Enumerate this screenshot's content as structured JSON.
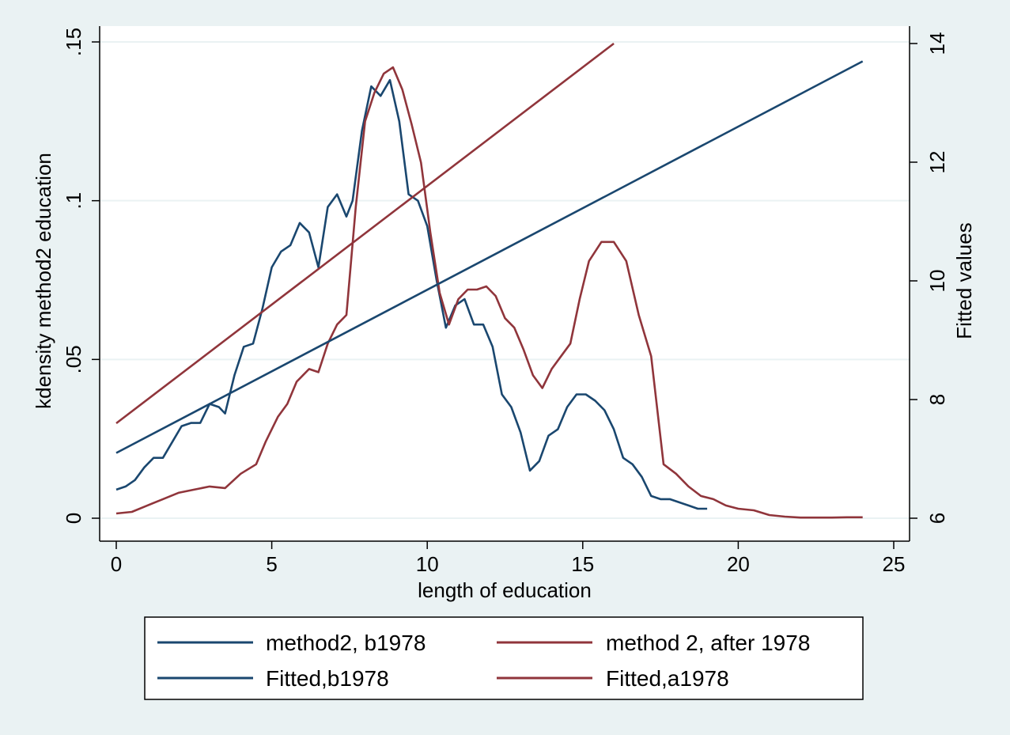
{
  "chart_data": {
    "type": "line",
    "xlabel": "length of education",
    "ylabel_left": "kdensity method2 education",
    "ylabel_right": "Fitted values",
    "xlim": [
      0,
      25
    ],
    "ylim_left": [
      0,
      0.15
    ],
    "ylim_right": [
      6,
      14
    ],
    "x_ticks": [
      0,
      5,
      10,
      15,
      20,
      25
    ],
    "x_tick_labels": [
      "0",
      "5",
      "10",
      "15",
      "20",
      "25"
    ],
    "y_left_ticks": [
      0,
      0.05,
      0.1,
      0.15
    ],
    "y_left_tick_labels": [
      "0",
      ".05",
      ".1",
      ".15"
    ],
    "y_right_ticks": [
      6,
      8,
      10,
      12,
      14
    ],
    "y_right_tick_labels": [
      "6",
      "8",
      "10",
      "12",
      "14"
    ],
    "grid": true,
    "legend_position": "bottom",
    "series": [
      {
        "name": "method2, b1978",
        "axis": "left",
        "color": "#1a476f",
        "x": [
          0,
          0.3,
          0.6,
          0.9,
          1.2,
          1.5,
          1.8,
          2.1,
          2.4,
          2.7,
          3.0,
          3.3,
          3.5,
          3.8,
          4.1,
          4.4,
          4.7,
          5.0,
          5.3,
          5.6,
          5.9,
          6.2,
          6.5,
          6.8,
          7.1,
          7.4,
          7.6,
          7.9,
          8.2,
          8.5,
          8.8,
          9.1,
          9.4,
          9.7,
          10.0,
          10.3,
          10.6,
          10.9,
          11.2,
          11.5,
          11.8,
          12.1,
          12.4,
          12.7,
          13.0,
          13.3,
          13.6,
          13.9,
          14.2,
          14.5,
          14.8,
          15.1,
          15.4,
          15.7,
          16.0,
          16.3,
          16.6,
          16.9,
          17.2,
          17.5,
          17.8,
          18.1,
          18.4,
          18.7,
          19.0
        ],
        "y": [
          0.009,
          0.01,
          0.012,
          0.016,
          0.019,
          0.019,
          0.024,
          0.029,
          0.03,
          0.03,
          0.036,
          0.035,
          0.033,
          0.045,
          0.054,
          0.055,
          0.066,
          0.079,
          0.084,
          0.086,
          0.093,
          0.09,
          0.079,
          0.098,
          0.102,
          0.095,
          0.1,
          0.122,
          0.136,
          0.133,
          0.138,
          0.125,
          0.102,
          0.1,
          0.092,
          0.075,
          0.06,
          0.067,
          0.069,
          0.061,
          0.061,
          0.054,
          0.039,
          0.035,
          0.027,
          0.015,
          0.018,
          0.026,
          0.028,
          0.035,
          0.039,
          0.039,
          0.037,
          0.034,
          0.028,
          0.019,
          0.017,
          0.013,
          0.007,
          0.006,
          0.006,
          0.005,
          0.004,
          0.003,
          0.003
        ]
      },
      {
        "name": "method 2, after 1978",
        "axis": "left",
        "color": "#90353b",
        "x": [
          0,
          0.5,
          1.0,
          1.5,
          2.0,
          2.5,
          3.0,
          3.5,
          4.0,
          4.5,
          4.8,
          5.2,
          5.5,
          5.8,
          6.2,
          6.5,
          6.8,
          7.1,
          7.4,
          7.7,
          8.0,
          8.3,
          8.6,
          8.9,
          9.2,
          9.5,
          9.8,
          10.1,
          10.4,
          10.7,
          11.0,
          11.3,
          11.6,
          11.9,
          12.2,
          12.5,
          12.8,
          13.1,
          13.4,
          13.7,
          14.0,
          14.3,
          14.6,
          14.9,
          15.2,
          15.6,
          16.0,
          16.4,
          16.8,
          17.2,
          17.6,
          18.0,
          18.4,
          18.8,
          19.2,
          19.6,
          20.0,
          20.5,
          21.0,
          21.5,
          22.0,
          22.5,
          23.0,
          23.5,
          24.0
        ],
        "y": [
          0.0015,
          0.002,
          0.004,
          0.006,
          0.008,
          0.009,
          0.01,
          0.0095,
          0.014,
          0.017,
          0.024,
          0.032,
          0.036,
          0.043,
          0.047,
          0.046,
          0.055,
          0.061,
          0.064,
          0.098,
          0.125,
          0.134,
          0.14,
          0.142,
          0.135,
          0.124,
          0.112,
          0.09,
          0.071,
          0.061,
          0.069,
          0.072,
          0.072,
          0.073,
          0.07,
          0.063,
          0.06,
          0.053,
          0.045,
          0.041,
          0.047,
          0.051,
          0.055,
          0.069,
          0.081,
          0.087,
          0.087,
          0.081,
          0.064,
          0.051,
          0.017,
          0.014,
          0.01,
          0.007,
          0.006,
          0.004,
          0.003,
          0.0025,
          0.001,
          0.0005,
          0.0002,
          0.0002,
          0.0002,
          0.0003,
          0.0003
        ]
      },
      {
        "name": "Fitted,b1978",
        "axis": "right",
        "color": "#1a476f",
        "x": [
          0,
          24
        ],
        "y": [
          7.1,
          13.7
        ]
      },
      {
        "name": "Fitted,a1978",
        "axis": "right",
        "color": "#90353b",
        "x": [
          0,
          16
        ],
        "y": [
          7.6,
          14.0
        ]
      }
    ]
  }
}
